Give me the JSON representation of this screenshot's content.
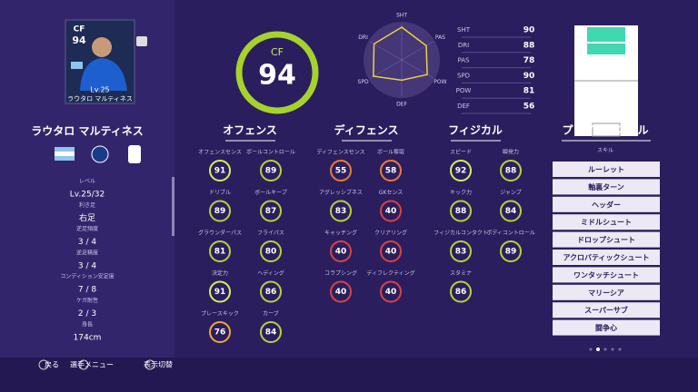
{
  "player": {
    "position": "CF",
    "overall": 94,
    "level": "Lv.25",
    "name": "ラウタロ マルティネス"
  },
  "info": [
    {
      "label": "レベル",
      "value": "Lv.25/32"
    },
    {
      "label": "利き足",
      "value": "右足"
    },
    {
      "label": "逆足頻度",
      "value": "3 / 4"
    },
    {
      "label": "逆足精度",
      "value": "3 / 4"
    },
    {
      "label": "コンディション安定度",
      "value": "7 / 8"
    },
    {
      "label": "ケガ耐性",
      "value": "2 / 3"
    },
    {
      "label": "身長",
      "value": "174cm"
    }
  ],
  "stats": {
    "rlim": [
      0,
      100
    ],
    "color": "#e8d33a",
    "items": [
      {
        "name": "SHT",
        "value": 90
      },
      {
        "name": "DRI",
        "value": 88
      },
      {
        "name": "PAS",
        "value": 78
      },
      {
        "name": "SPD",
        "value": 90
      },
      {
        "name": "POW",
        "value": 81
      },
      {
        "name": "DEF",
        "value": 56
      }
    ]
  },
  "sections": [
    {
      "title": "オフェンス",
      "items": [
        {
          "name": "オフェンスセンス",
          "value": 91,
          "color": "#d8ee5a"
        },
        {
          "name": "ボールコントロール",
          "value": 89,
          "color": "#b6d334"
        },
        {
          "name": "ドリブル",
          "value": 89,
          "color": "#b6d334"
        },
        {
          "name": "ボールキープ",
          "value": 87,
          "color": "#b6d334"
        },
        {
          "name": "グラウンダーパス",
          "value": 81,
          "color": "#b6d334"
        },
        {
          "name": "フライパス",
          "value": 80,
          "color": "#b6d334"
        },
        {
          "name": "決定力",
          "value": 91,
          "color": "#d8ee5a"
        },
        {
          "name": "ヘディング",
          "value": 86,
          "color": "#b6d334"
        },
        {
          "name": "プレースキック",
          "value": 76,
          "color": "#f0a632"
        },
        {
          "name": "カーブ",
          "value": 84,
          "color": "#b6d334"
        }
      ]
    },
    {
      "title": "ディフェンス",
      "items": [
        {
          "name": "ディフェンスセンス",
          "value": 55,
          "color": "#ec7a34"
        },
        {
          "name": "ボール奪取",
          "value": 58,
          "color": "#ec7a34"
        },
        {
          "name": "アグレッシブネス",
          "value": 83,
          "color": "#b6d334"
        },
        {
          "name": "GKセンス",
          "value": 40,
          "color": "#d8423e"
        },
        {
          "name": "キャッチング",
          "value": 40,
          "color": "#d8423e"
        },
        {
          "name": "クリアリング",
          "value": 40,
          "color": "#d8423e"
        },
        {
          "name": "コラプシング",
          "value": 40,
          "color": "#d8423e"
        },
        {
          "name": "ディフレクティング",
          "value": 40,
          "color": "#d8423e"
        }
      ]
    },
    {
      "title": "フィジカル",
      "items": [
        {
          "name": "スピード",
          "value": 92,
          "color": "#d8ee5a"
        },
        {
          "name": "瞬発力",
          "value": 88,
          "color": "#b6d334"
        },
        {
          "name": "キック力",
          "value": 88,
          "color": "#b6d334"
        },
        {
          "name": "ジャンプ",
          "value": 84,
          "color": "#b6d334"
        },
        {
          "name": "フィジカルコンタクト",
          "value": 83,
          "color": "#b6d334"
        },
        {
          "name": "ボディコントロール",
          "value": 89,
          "color": "#b6d334"
        },
        {
          "name": "スタミナ",
          "value": 86,
          "color": "#b6d334"
        }
      ]
    }
  ],
  "skills": {
    "title": "プレイヤースキル",
    "subtitle": "スキル",
    "items": [
      "ルーレット",
      "軸裏ターン",
      "ヘッダー",
      "ミドルシュート",
      "ドロップシュート",
      "アクロバティックシュート",
      "ワンタッチシュート",
      "マリーシア",
      "スーパーサブ",
      "闘争心"
    ]
  },
  "controls": [
    "戻る",
    "選手メニュー",
    "表示切替"
  ]
}
